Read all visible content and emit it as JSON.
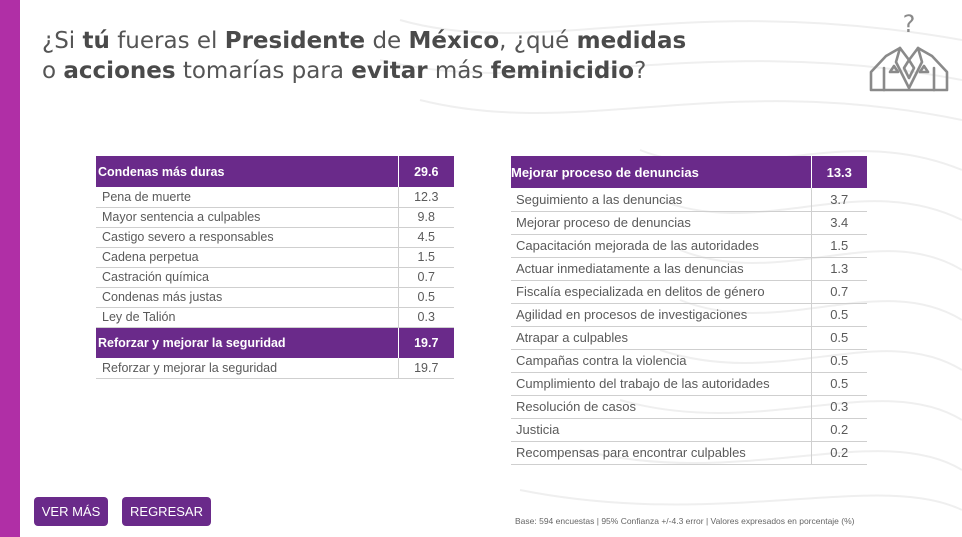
{
  "title": {
    "parts": [
      {
        "t": "¿Si ",
        "b": false
      },
      {
        "t": "tú",
        "b": true
      },
      {
        "t": " fueras el ",
        "b": false
      },
      {
        "t": "Presidente",
        "b": true
      },
      {
        "t": " de ",
        "b": false
      },
      {
        "t": "México",
        "b": true
      },
      {
        "t": ", ¿qué ",
        "b": false
      },
      {
        "t": "medidas",
        "b": true
      },
      {
        "t": " o ",
        "b": false
      },
      {
        "t": "acciones",
        "b": true
      },
      {
        "t": " tomarías para ",
        "b": false
      },
      {
        "t": "evitar",
        "b": true
      },
      {
        "t": " más ",
        "b": false
      },
      {
        "t": "feminicidio",
        "b": true
      },
      {
        "t": "?",
        "b": false
      }
    ]
  },
  "logo": {
    "icon": "question-suit-icon",
    "symbol": "?"
  },
  "left_table": {
    "sections": [
      {
        "header": {
          "label": "Condenas más duras",
          "value": "29.6"
        },
        "rows": [
          {
            "label": "Pena de muerte",
            "value": "12.3"
          },
          {
            "label": "Mayor sentencia a culpables",
            "value": "9.8"
          },
          {
            "label": "Castigo severo a responsables",
            "value": "4.5"
          },
          {
            "label": "Cadena perpetua",
            "value": "1.5"
          },
          {
            "label": "Castración química",
            "value": "0.7"
          },
          {
            "label": "Condenas más justas",
            "value": "0.5"
          },
          {
            "label": "Ley de Talión",
            "value": "0.3"
          }
        ]
      },
      {
        "header": {
          "label": "Reforzar y mejorar la seguridad",
          "value": "19.7"
        },
        "rows": [
          {
            "label": "Reforzar y mejorar la seguridad",
            "value": "19.7"
          }
        ]
      }
    ]
  },
  "right_table": {
    "sections": [
      {
        "header": {
          "label": "Mejorar proceso de denuncias",
          "value": "13.3"
        },
        "rows": [
          {
            "label": "Seguimiento a las denuncias",
            "value": "3.7"
          },
          {
            "label": "Mejorar proceso de denuncias",
            "value": "3.4"
          },
          {
            "label": "Capacitación mejorada de las autoridades",
            "value": "1.5"
          },
          {
            "label": "Actuar inmediatamente a las denuncias",
            "value": "1.3"
          },
          {
            "label": "Fiscalía especializada en delitos de género",
            "value": "0.7"
          },
          {
            "label": "Agilidad en procesos de investigaciones",
            "value": "0.5"
          },
          {
            "label": "Atrapar a culpables",
            "value": "0.5"
          },
          {
            "label": "Campañas contra la violencia",
            "value": "0.5"
          },
          {
            "label": "Cumplimiento del trabajo de las autoridades",
            "value": "0.5"
          },
          {
            "label": "Resolución de casos",
            "value": "0.3"
          },
          {
            "label": "Justicia",
            "value": "0.2"
          },
          {
            "label": "Recompensas para encontrar culpables",
            "value": "0.2"
          }
        ]
      }
    ]
  },
  "buttons": {
    "ver_mas": "VER MÁS",
    "regresar": "REGRESAR"
  },
  "footnote": "Base: 594 encuestas | 95% Confianza +/-4.3 error | Valores expresados en porcentaje (%)",
  "colors": {
    "accent": "#6a2a8a",
    "sidebar": "#b02fa6",
    "text": "#555555"
  }
}
